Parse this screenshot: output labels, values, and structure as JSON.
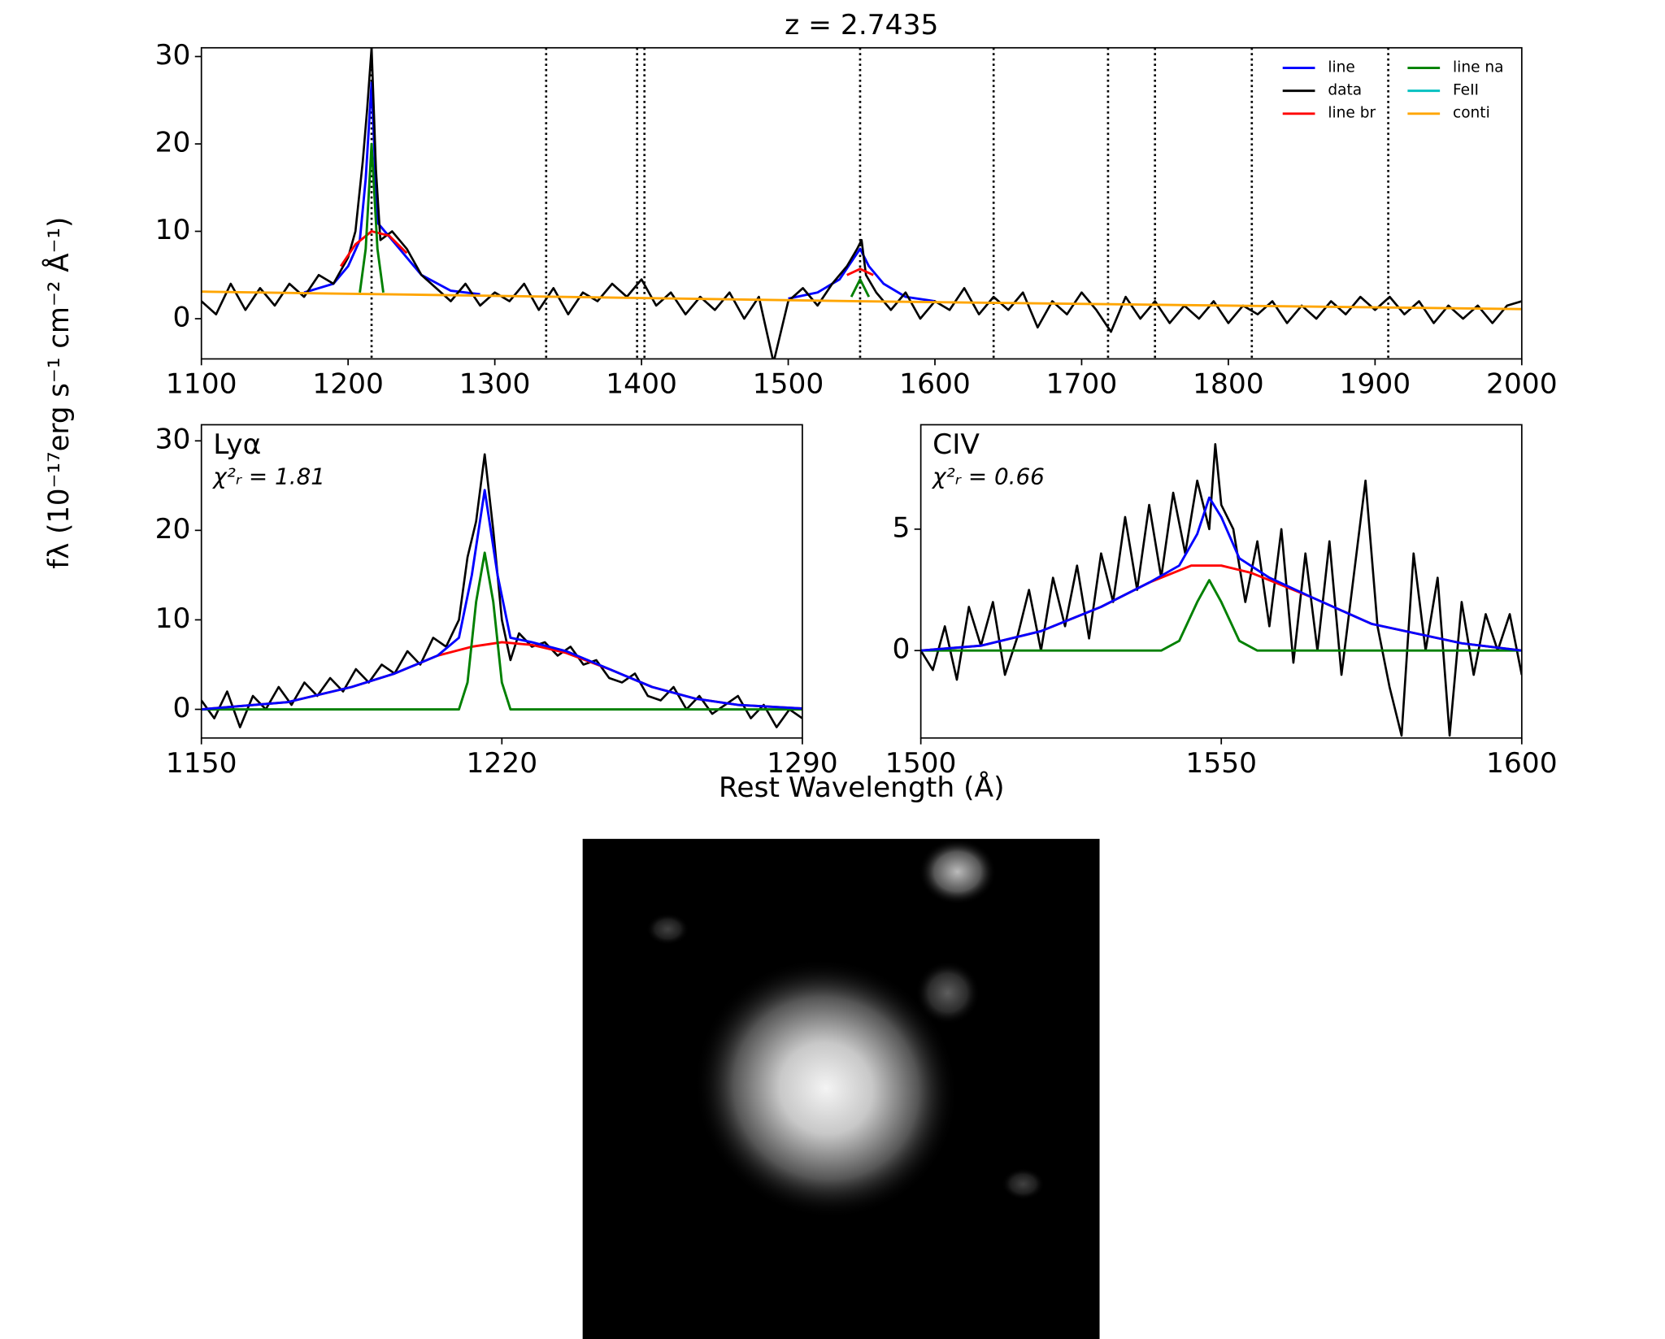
{
  "chart_data": [
    {
      "type": "line",
      "title": "z = 2.7435",
      "ylabel": "fλ (10⁻¹⁷erg s⁻¹ cm⁻² Å⁻¹)",
      "xlim": [
        1100,
        2000
      ],
      "ylim": [
        -4.6,
        31
      ],
      "xticks": [
        1100,
        1200,
        1300,
        1400,
        1500,
        1600,
        1700,
        1800,
        1900,
        2000
      ],
      "yticks": [
        0,
        10,
        20,
        30
      ],
      "vlines": [
        1216,
        1335,
        1397,
        1402,
        1549,
        1640,
        1718,
        1750,
        1816,
        1909
      ],
      "legend": "upper right",
      "series": [
        {
          "name": "line",
          "color": "#0000ff",
          "x": [
            1170,
            1190,
            1200,
            1208,
            1212,
            1216,
            1220,
            1225,
            1235,
            1250,
            1270,
            1290,
            1400,
            1500,
            1520,
            1535,
            1543,
            1549,
            1555,
            1565,
            1580,
            1600
          ],
          "values": [
            3,
            4,
            6,
            9,
            16,
            27,
            11,
            10,
            8,
            5,
            3.2,
            2.8,
            null,
            2.3,
            3,
            4.5,
            6.5,
            8,
            6,
            4,
            2.5,
            2
          ]
        },
        {
          "name": "data",
          "color": "#000000",
          "x": [
            1100,
            1110,
            1120,
            1130,
            1140,
            1150,
            1160,
            1170,
            1180,
            1190,
            1200,
            1205,
            1210,
            1213,
            1216,
            1219,
            1222,
            1230,
            1240,
            1250,
            1260,
            1270,
            1280,
            1290,
            1300,
            1310,
            1320,
            1330,
            1340,
            1350,
            1360,
            1370,
            1380,
            1390,
            1400,
            1410,
            1420,
            1430,
            1440,
            1450,
            1460,
            1470,
            1480,
            1490,
            1500,
            1510,
            1520,
            1530,
            1540,
            1547,
            1550,
            1553,
            1560,
            1570,
            1580,
            1590,
            1600,
            1610,
            1620,
            1630,
            1640,
            1650,
            1660,
            1670,
            1680,
            1690,
            1700,
            1710,
            1720,
            1730,
            1740,
            1750,
            1760,
            1770,
            1780,
            1790,
            1800,
            1810,
            1820,
            1830,
            1840,
            1850,
            1860,
            1870,
            1880,
            1890,
            1900,
            1910,
            1920,
            1930,
            1940,
            1950,
            1960,
            1970,
            1980,
            1990,
            2000
          ],
          "values": [
            2,
            0.5,
            4,
            1,
            3.5,
            1.5,
            4,
            2.5,
            5,
            4,
            7,
            10,
            18,
            24,
            31,
            17,
            9,
            10,
            8,
            5,
            3.5,
            2,
            4,
            1.5,
            3,
            2,
            4,
            1,
            3.5,
            0.5,
            3,
            2,
            4,
            2.5,
            4.5,
            1.5,
            3,
            0.5,
            2.5,
            1,
            3,
            0,
            2.5,
            -5,
            2,
            3.5,
            1.5,
            4,
            6,
            8,
            9,
            5,
            3,
            1,
            3,
            0,
            2,
            1,
            3.5,
            0.5,
            2.5,
            1,
            3,
            -1,
            2,
            0.5,
            3,
            1,
            -1.5,
            2.5,
            0,
            2,
            -0.5,
            1.5,
            0,
            2,
            -0.5,
            1.5,
            0.5,
            2,
            -0.5,
            1.5,
            0,
            2,
            0.5,
            2.5,
            1,
            2.5,
            0.5,
            2,
            -0.5,
            1.5,
            0,
            1.5,
            -0.5,
            1.5,
            2
          ]
        },
        {
          "name": "line br",
          "color": "#ff0000",
          "x": [
            1195,
            1205,
            1216,
            1228,
            1240,
            1400,
            1540,
            1549,
            1558
          ],
          "values": [
            6,
            8.5,
            10,
            9.5,
            7.5,
            null,
            5,
            5.7,
            5
          ]
        },
        {
          "name": "line na",
          "color": "#008000",
          "x": [
            1208,
            1212,
            1216,
            1220,
            1224,
            1400,
            1543,
            1549,
            1555
          ],
          "values": [
            3,
            8,
            20,
            8,
            3,
            null,
            2.5,
            4.5,
            2.5
          ]
        },
        {
          "name": "FeII",
          "color": "#00bfbf",
          "x": [
            1100,
            2000
          ],
          "values": [
            null,
            null
          ]
        },
        {
          "name": "conti",
          "color": "#ffa500",
          "x": [
            1100,
            1550,
            2000
          ],
          "values": [
            3.1,
            2,
            1.1
          ]
        }
      ]
    },
    {
      "type": "line",
      "annotations": [
        "Lyα",
        "χ²ᵣ = 1.81"
      ],
      "xlabel": "Rest Wavelength (Å)",
      "xlim": [
        1150,
        1290
      ],
      "ylim": [
        -3.2,
        31.8
      ],
      "xticks": [
        1150,
        1220,
        1290
      ],
      "yticks": [
        0,
        10,
        20,
        30
      ],
      "series": [
        {
          "color": "#000000",
          "x": [
            1150,
            1153,
            1156,
            1159,
            1162,
            1165,
            1168,
            1171,
            1174,
            1177,
            1180,
            1183,
            1186,
            1189,
            1192,
            1195,
            1198,
            1201,
            1204,
            1207,
            1210,
            1212,
            1214,
            1216,
            1218,
            1220,
            1222,
            1224,
            1227,
            1230,
            1233,
            1236,
            1239,
            1242,
            1245,
            1248,
            1251,
            1254,
            1257,
            1260,
            1263,
            1266,
            1269,
            1272,
            1275,
            1278,
            1281,
            1284,
            1287,
            1290
          ],
          "values": [
            1,
            -1,
            2,
            -2,
            1.5,
            0,
            2.5,
            0.5,
            3,
            1.5,
            3.5,
            2,
            4.5,
            3,
            5,
            4,
            6.5,
            5,
            8,
            7,
            10,
            17,
            21,
            28.5,
            20,
            10,
            5.5,
            8.5,
            7,
            7.5,
            6,
            7,
            5,
            5.5,
            3.5,
            3,
            4,
            1.5,
            1,
            2.5,
            0,
            1.5,
            -0.5,
            0.5,
            1.5,
            -1,
            0.5,
            -2,
            0,
            -1
          ]
        },
        {
          "color": "#ff0000",
          "x": [
            1150,
            1170,
            1185,
            1195,
            1205,
            1213,
            1220,
            1227,
            1235,
            1245,
            1255,
            1265,
            1275,
            1290
          ],
          "values": [
            0,
            0.8,
            2.5,
            4,
            6,
            7,
            7.5,
            7.2,
            6.3,
            4.5,
            2.5,
            1.2,
            0.5,
            0.1
          ]
        },
        {
          "color": "#008000",
          "x": [
            1150,
            1210,
            1212,
            1214,
            1216,
            1218,
            1220,
            1222,
            1290
          ],
          "values": [
            0,
            0,
            3,
            12,
            17.5,
            12,
            3,
            0,
            0
          ]
        },
        {
          "color": "#0000ff",
          "x": [
            1150,
            1170,
            1185,
            1195,
            1205,
            1210,
            1213,
            1216,
            1219,
            1222,
            1227,
            1235,
            1245,
            1255,
            1265,
            1275,
            1290
          ],
          "values": [
            0,
            0.8,
            2.5,
            4,
            6,
            8,
            15,
            24.5,
            15,
            8,
            7.5,
            6.5,
            4.5,
            2.5,
            1.2,
            0.5,
            0.1
          ]
        }
      ]
    },
    {
      "type": "line",
      "annotations": [
        "CIV",
        "χ²ᵣ = 0.66"
      ],
      "xlim": [
        1500,
        1600
      ],
      "ylim": [
        -3.6,
        9.3
      ],
      "xticks": [
        1500,
        1550,
        1600
      ],
      "yticks": [
        0,
        5
      ],
      "series": [
        {
          "color": "#000000",
          "x": [
            1500,
            1502,
            1504,
            1506,
            1508,
            1510,
            1512,
            1514,
            1516,
            1518,
            1520,
            1522,
            1524,
            1526,
            1528,
            1530,
            1532,
            1534,
            1536,
            1538,
            1540,
            1542,
            1544,
            1546,
            1548,
            1549,
            1550,
            1552,
            1554,
            1556,
            1558,
            1560,
            1562,
            1564,
            1566,
            1568,
            1570,
            1572,
            1574,
            1576,
            1578,
            1580,
            1582,
            1584,
            1586,
            1588,
            1590,
            1592,
            1594,
            1596,
            1598,
            1600
          ],
          "values": [
            0,
            -0.8,
            1,
            -1.2,
            1.8,
            0.2,
            2,
            -1,
            0.5,
            2.5,
            0,
            3,
            1,
            3.5,
            0.5,
            4,
            2,
            5.5,
            2.5,
            6,
            3,
            6.5,
            4,
            7,
            5,
            8.5,
            6,
            5,
            2,
            4.5,
            1,
            5,
            -0.5,
            4,
            0,
            4.5,
            -1,
            3,
            7,
            1,
            -1.5,
            -3.5,
            4,
            0,
            3,
            -3.5,
            2,
            -1,
            1.5,
            0,
            1.5,
            -1
          ]
        },
        {
          "color": "#ff0000",
          "x": [
            1500,
            1510,
            1520,
            1530,
            1538,
            1545,
            1550,
            1555,
            1560,
            1565,
            1575,
            1590,
            1600
          ],
          "values": [
            0,
            0.2,
            0.8,
            1.8,
            2.8,
            3.5,
            3.5,
            3.2,
            2.7,
            2.2,
            1.1,
            0.3,
            0
          ]
        },
        {
          "color": "#008000",
          "x": [
            1500,
            1540,
            1543,
            1546,
            1548,
            1550,
            1553,
            1556,
            1600
          ],
          "values": [
            0,
            0,
            0.4,
            2,
            2.9,
            2,
            0.4,
            0,
            0
          ]
        },
        {
          "color": "#0000ff",
          "x": [
            1500,
            1510,
            1520,
            1530,
            1538,
            1543,
            1546,
            1548,
            1550,
            1553,
            1558,
            1565,
            1575,
            1590,
            1600
          ],
          "values": [
            0,
            0.2,
            0.8,
            1.8,
            2.8,
            3.5,
            4.8,
            6.3,
            5.5,
            3.8,
            3,
            2.2,
            1.1,
            0.3,
            0
          ]
        }
      ]
    }
  ]
}
